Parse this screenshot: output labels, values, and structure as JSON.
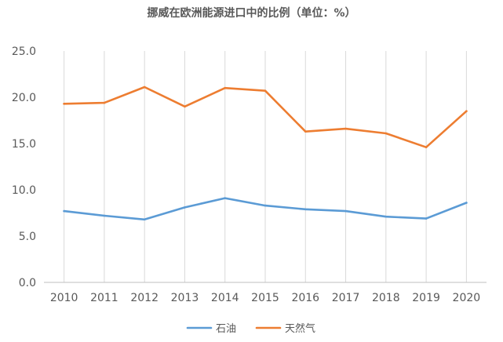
{
  "chart_data": {
    "type": "line",
    "title": "挪威在欧洲能源进口中的比例（单位：%）",
    "xlabel": "",
    "ylabel": "",
    "categories": [
      "2010",
      "2011",
      "2012",
      "2013",
      "2014",
      "2015",
      "2016",
      "2017",
      "2018",
      "2019",
      "2020"
    ],
    "y_tick_labels": [
      "0.0",
      "5.0",
      "10.0",
      "15.0",
      "20.0",
      "25.0"
    ],
    "ylim": [
      0,
      25
    ],
    "grid": {
      "vertical": true,
      "horizontal": false
    },
    "legend_position": "bottom",
    "series": [
      {
        "name": "石油",
        "color": "#5B9BD5",
        "values": [
          7.7,
          7.2,
          6.8,
          8.1,
          9.1,
          8.3,
          7.9,
          7.7,
          7.1,
          6.9,
          8.6
        ]
      },
      {
        "name": "天然气",
        "color": "#ED7D31",
        "values": [
          19.3,
          19.4,
          21.1,
          19.0,
          21.0,
          20.7,
          16.3,
          16.6,
          16.1,
          14.6,
          18.5
        ]
      }
    ]
  }
}
